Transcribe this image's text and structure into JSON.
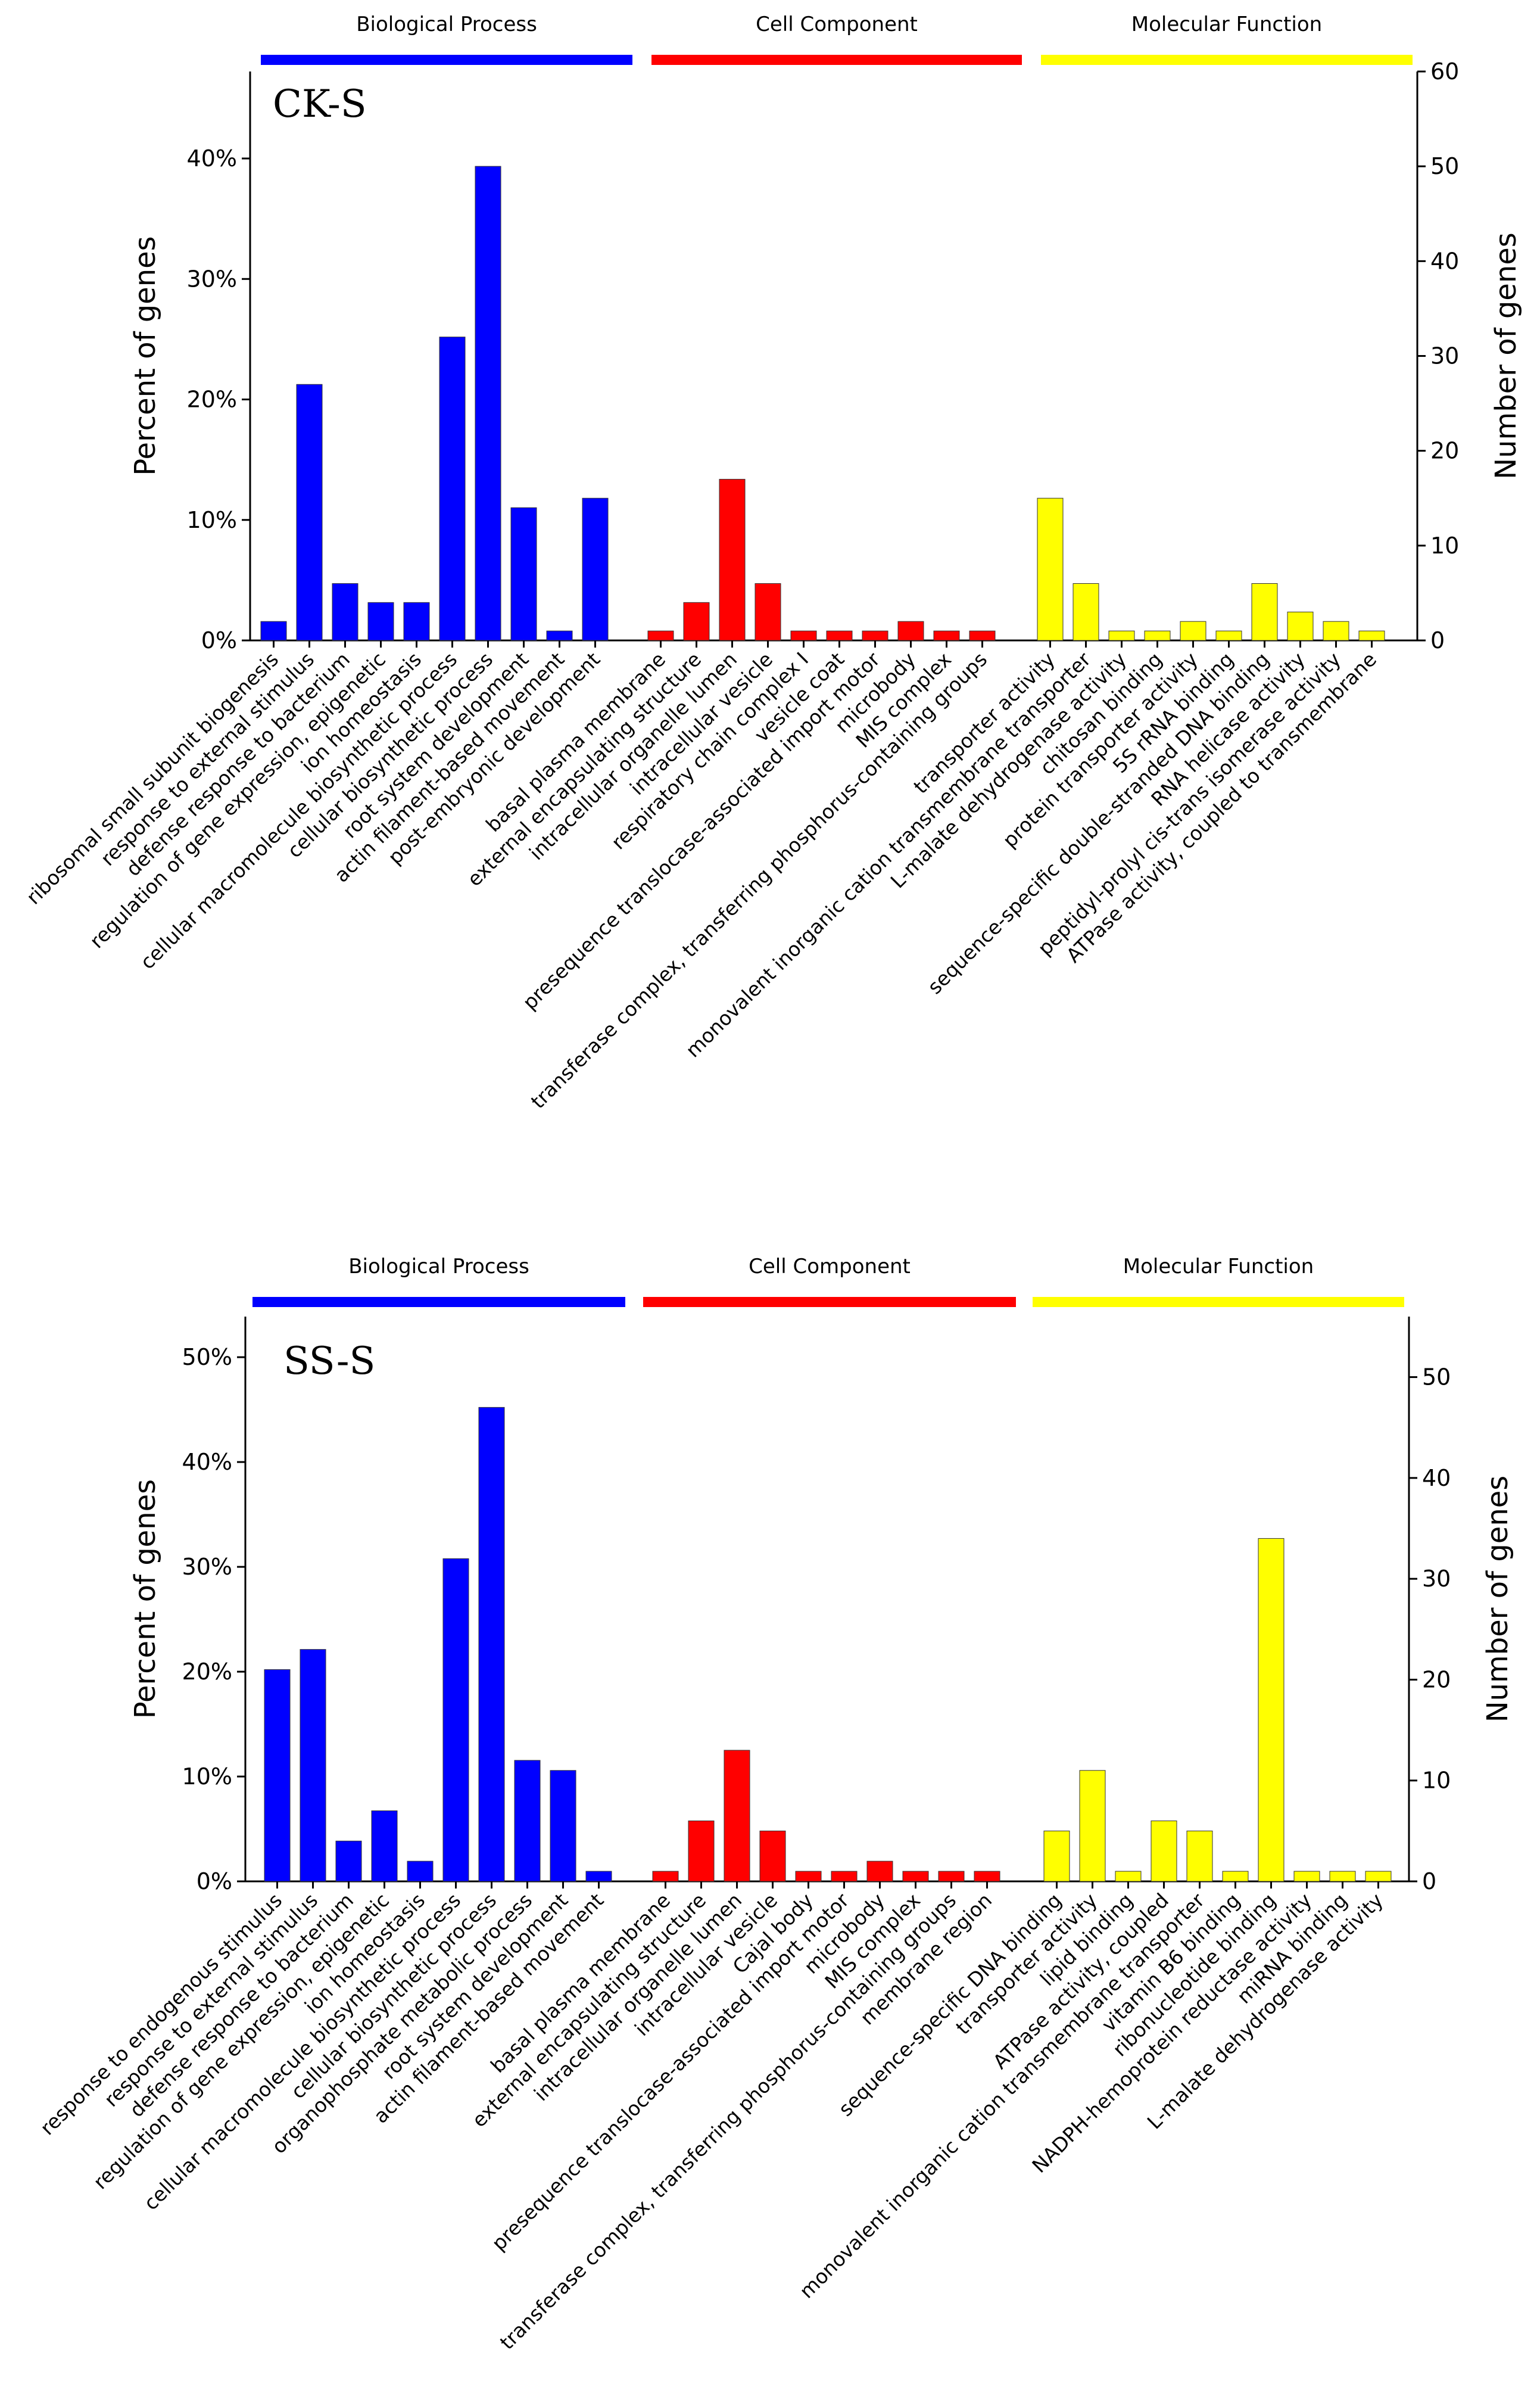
{
  "chart_data": [
    {
      "type": "bar",
      "panel_label": "CK-S",
      "ylabel_left": "Percent of genes",
      "ylabel_right": "Number of genes",
      "y_left_ticks": [
        "0%",
        "10%",
        "20%",
        "30%",
        "40%"
      ],
      "y_left_tick_values": [
        0,
        10,
        20,
        30,
        40
      ],
      "y_right_ticks": [
        "0",
        "10",
        "20",
        "30",
        "40",
        "50",
        "60"
      ],
      "y_right_tick_values": [
        0,
        10,
        20,
        30,
        40,
        50,
        60
      ],
      "y_right_max": 60,
      "percent_per_gene": 0.787,
      "groups": [
        {
          "name": "Biological Process",
          "color": "#0000ff",
          "categories": [
            "ribosomal small subunit biogenesis",
            "response to external stimulus",
            "defense response to bacterium",
            "regulation of gene expression, epigenetic",
            "ion homeostasis",
            "cellular macromolecule biosynthetic process",
            "cellular biosynthetic process",
            "root system development",
            "actin filament-based movement",
            "post-embryonic development"
          ],
          "values": [
            2,
            27,
            6,
            4,
            4,
            32,
            50,
            14,
            1,
            15
          ]
        },
        {
          "name": "Cell Component",
          "color": "#ff0000",
          "categories": [
            "basal plasma membrane",
            "external encapsulating structure",
            "intracellular organelle lumen",
            "intracellular vesicle",
            "respiratory chain complex I",
            "vesicle coat",
            "presequence translocase-associated import motor",
            "microbody",
            "MIS complex",
            "transferase complex, transferring phosphorus-containing groups"
          ],
          "values": [
            1,
            4,
            17,
            6,
            1,
            1,
            1,
            2,
            1,
            1
          ]
        },
        {
          "name": "Molecular Function",
          "color": "#ffff00",
          "categories": [
            "transporter activity",
            "monovalent inorganic cation transmembrane transporter",
            "L-malate dehydrogenase activity",
            "chitosan binding",
            "protein transporter activity",
            "5S rRNA binding",
            "sequence-specific double-stranded DNA binding",
            "RNA helicase activity",
            "peptidyl-prolyl cis-trans isomerase activity",
            "ATPase activity, coupled to transmembrane"
          ],
          "values": [
            15,
            6,
            1,
            1,
            2,
            1,
            6,
            3,
            2,
            1
          ]
        }
      ]
    },
    {
      "type": "bar",
      "panel_label": "SS-S",
      "ylabel_left": "Percent of genes",
      "ylabel_right": "Number of genes",
      "y_left_ticks": [
        "0%",
        "10%",
        "20%",
        "30%",
        "40%",
        "50%"
      ],
      "y_left_tick_values": [
        0,
        10,
        20,
        30,
        40,
        50
      ],
      "y_right_ticks": [
        "0",
        "10",
        "20",
        "30",
        "40",
        "50"
      ],
      "y_right_tick_values": [
        0,
        10,
        20,
        30,
        40,
        50
      ],
      "y_right_max": 56,
      "percent_per_gene": 0.962,
      "groups": [
        {
          "name": "Biological Process",
          "color": "#0000ff",
          "categories": [
            "response to endogenous stimulus",
            "response to external stimulus",
            "defense response to bacterium",
            "regulation of gene expression, epigenetic",
            "ion homeostasis",
            "cellular macromolecule biosynthetic process",
            "cellular biosynthetic process",
            "organophosphate metabolic process",
            "root system development",
            "actin filament-based movement"
          ],
          "values": [
            21,
            23,
            4,
            7,
            2,
            32,
            47,
            12,
            11,
            1
          ]
        },
        {
          "name": "Cell Component",
          "color": "#ff0000",
          "categories": [
            "basal plasma membrane",
            "external encapsulating structure",
            "intracellular organelle lumen",
            "intracellular vesicle",
            "Cajal body",
            "presequence translocase-associated import motor",
            "microbody",
            "MIS complex",
            "transferase complex, transferring phosphorus-containing groups",
            "membrane region"
          ],
          "values": [
            1,
            6,
            13,
            5,
            1,
            1,
            2,
            1,
            1,
            1
          ]
        },
        {
          "name": "Molecular Function",
          "color": "#ffff00",
          "categories": [
            "sequence-specific DNA binding",
            "transporter activity",
            "lipid binding",
            "ATPase activity, coupled",
            "monovalent inorganic cation transmembrane transporter",
            "vitamin B6 binding",
            "ribonucleotide binding",
            "NADPH-hemoprotein reductase activity",
            "miRNA binding",
            "L-malate dehydrogenase activity"
          ],
          "values": [
            5,
            11,
            1,
            6,
            5,
            1,
            34,
            1,
            1,
            1
          ]
        }
      ]
    }
  ]
}
